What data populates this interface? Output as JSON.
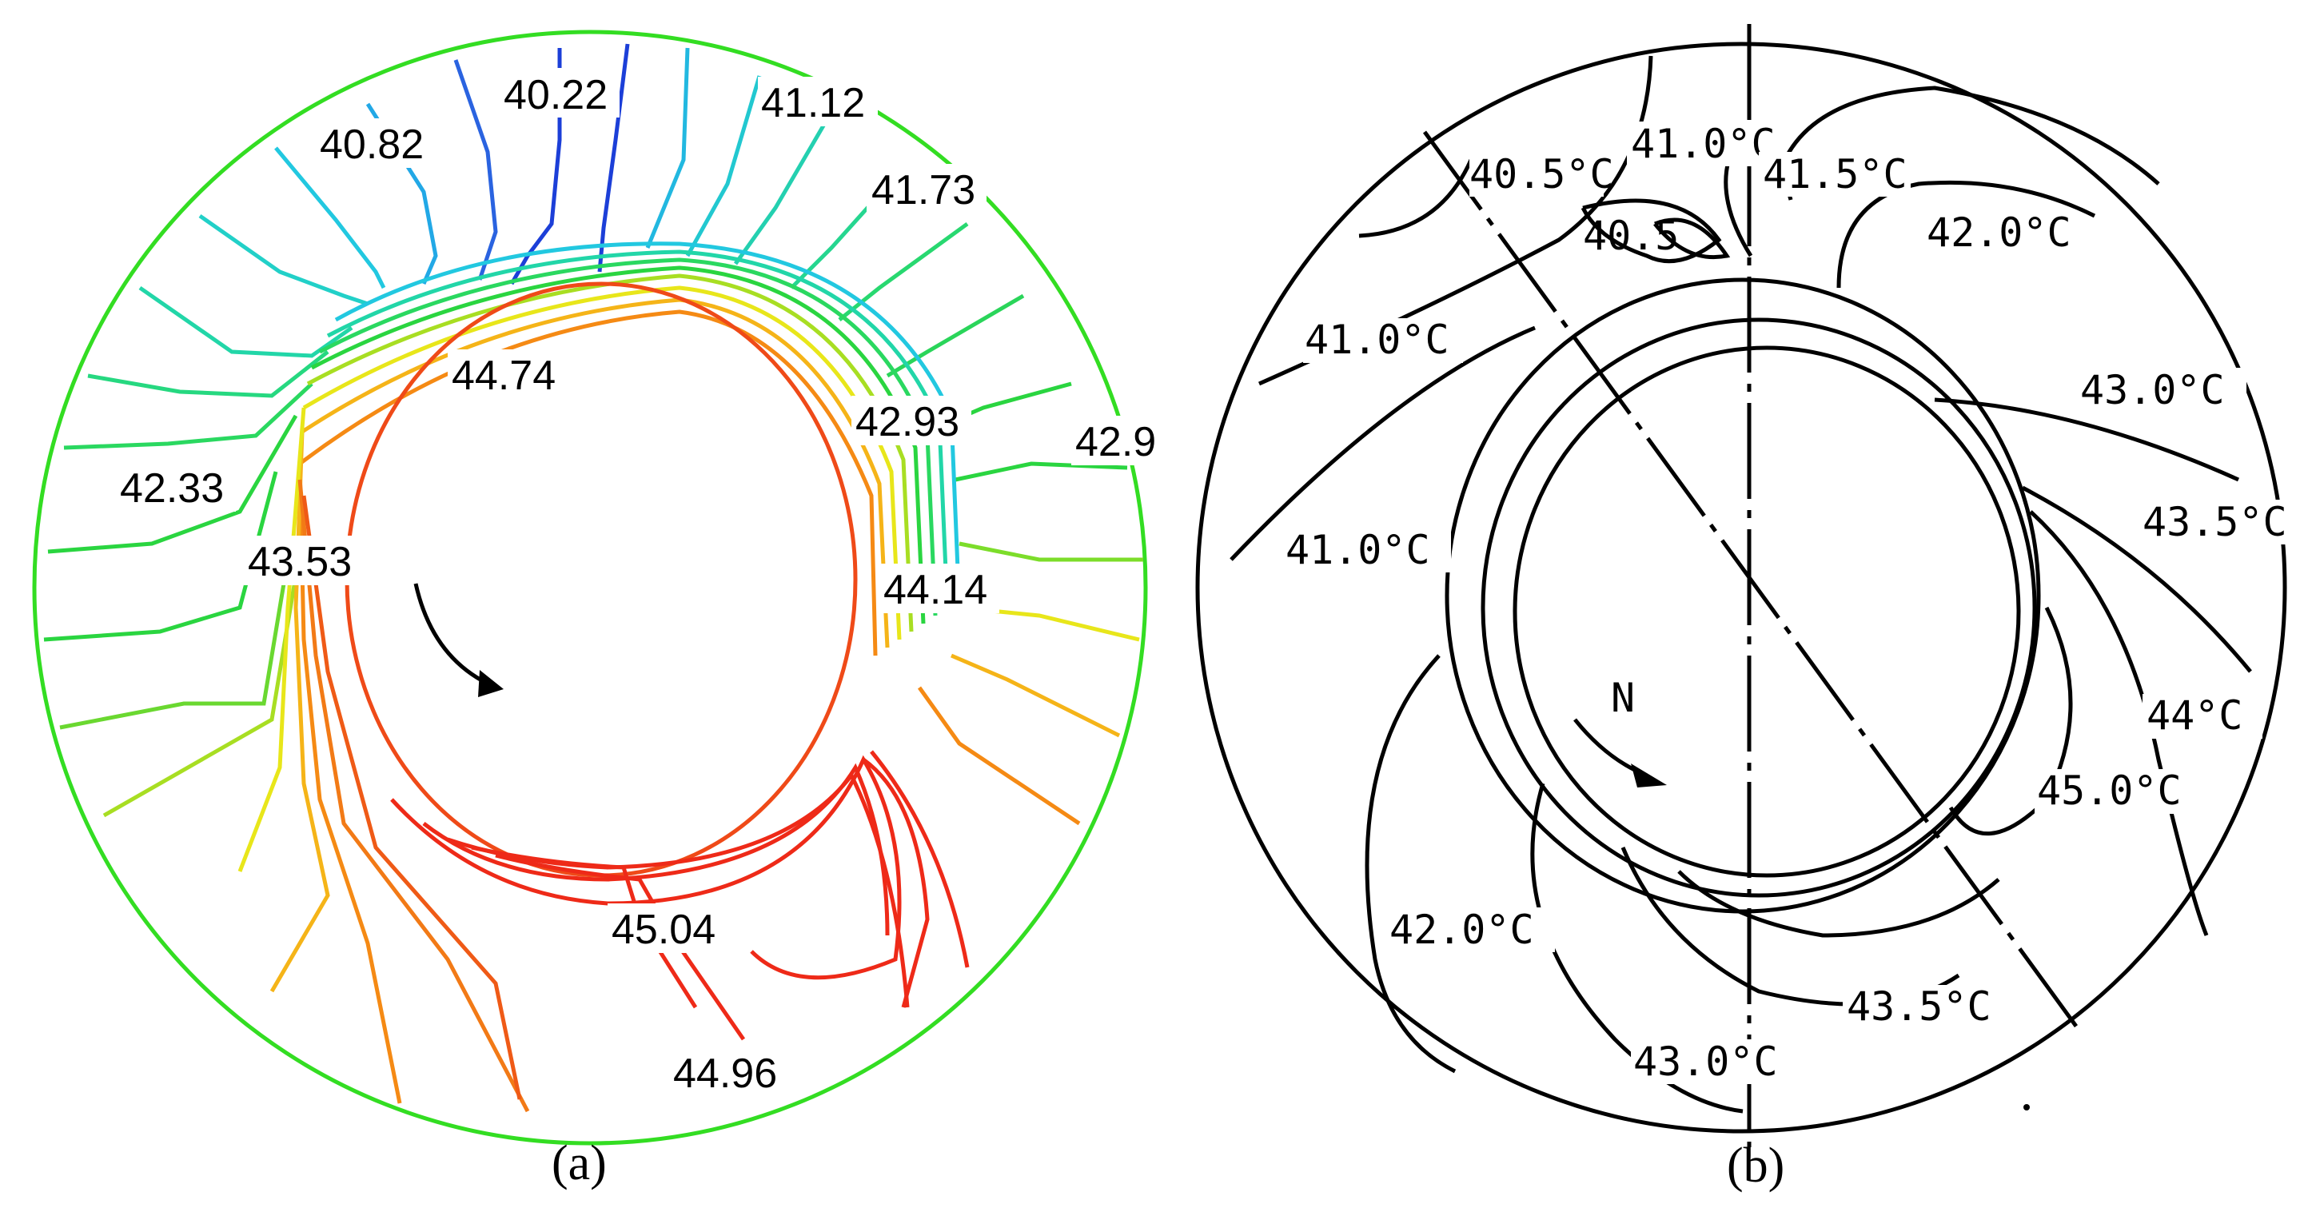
{
  "panel_a": {
    "caption": "(a)",
    "labels": [
      "40.22",
      "40.82",
      "41.12",
      "41.73",
      "44.74",
      "42.93",
      "42.9",
      "42.33",
      "43.53",
      "44.14",
      "45.04",
      "44.96"
    ],
    "colors": {
      "boundary": "#33dd22",
      "blue": "#1c3fd8",
      "cyan": "#22c8e0",
      "green": "#2ad540",
      "yellow": "#e8e61a",
      "orange": "#f58a14",
      "red": "#ee2a18",
      "arrow": "#000000"
    }
  },
  "panel_b": {
    "caption": "(b)",
    "labels": [
      "40.5°C",
      "41.0°C",
      "41.5°C",
      "42.0°C",
      "40.5",
      "41.0°C",
      "43.0°C",
      "43.5°C",
      "41.0°C",
      "44°C",
      "45.0°C",
      "N",
      "42.0°C",
      "43.5°C",
      "43.0°C"
    ]
  }
}
